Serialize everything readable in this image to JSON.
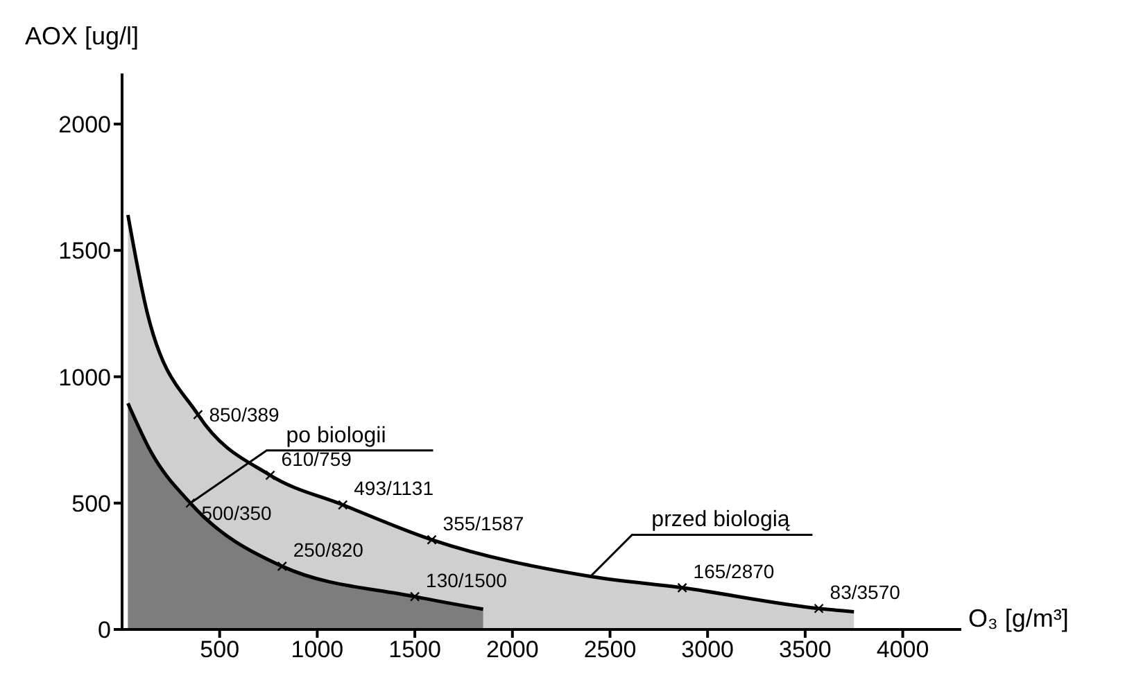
{
  "chart_data": {
    "type": "area",
    "xlabel": "O₃ [g/m³]",
    "ylabel": "AOX [ug/l]",
    "xlim": [
      0,
      4300
    ],
    "xticks": [
      500,
      1000,
      1500,
      2000,
      2500,
      3000,
      3500,
      4000
    ],
    "ylim": [
      0,
      2200
    ],
    "yticks": [
      0,
      500,
      1000,
      1500,
      2000
    ],
    "marker": "cross",
    "line_style": "solid",
    "series": [
      {
        "name": "przed biologią",
        "color": "#cfcfcf",
        "x": [
          30,
          130,
          389,
          759,
          1131,
          1587,
          2400,
          2870,
          3570,
          3750
        ],
        "values": [
          1640,
          1250,
          850,
          610,
          493,
          355,
          210,
          165,
          83,
          70
        ],
        "value_labels": [
          null,
          null,
          "850/389",
          "610/759",
          "493/1131",
          "355/1587",
          null,
          "165/2870",
          "83/3570",
          null
        ]
      },
      {
        "name": "po biologii",
        "color": "#7d7d7d",
        "x": [
          30,
          150,
          350,
          820,
          1500,
          1850
        ],
        "values": [
          895,
          700,
          500,
          250,
          130,
          80
        ],
        "value_labels": [
          null,
          null,
          "500/350",
          "250/820",
          "130/1500",
          null
        ]
      }
    ]
  }
}
